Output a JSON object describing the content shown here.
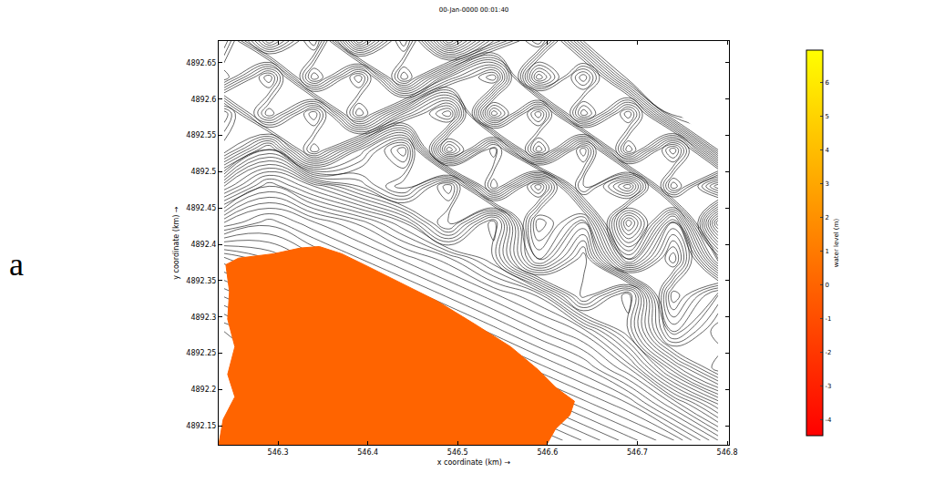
{
  "chart_data": {
    "type": "map_contour",
    "title": "00-Jan-0000 00:01:40",
    "x_label": "x coordinate (km) →",
    "y_label": "y coordinate (km) →",
    "xlim": [
      546.234,
      546.802
    ],
    "ylim": [
      4892.124,
      4892.68
    ],
    "xticks": [
      546.3,
      546.4,
      546.5,
      546.6,
      546.7,
      546.8
    ],
    "yticks": [
      4892.15,
      4892.2,
      4892.25,
      4892.3,
      4892.35,
      4892.4,
      4892.45,
      4892.5,
      4892.55,
      4892.6,
      4892.65
    ],
    "grid": false,
    "water_level": 0,
    "water_area": {
      "x": [
        546.242,
        546.256,
        546.295,
        546.325,
        546.346,
        546.371,
        546.396,
        546.437,
        546.477,
        546.518,
        546.559,
        546.589,
        546.609,
        546.63,
        546.625,
        546.609,
        546.599,
        546.234,
        546.239,
        546.252,
        546.244,
        546.252,
        546.244,
        546.246,
        546.242
      ],
      "y": [
        4892.372,
        4892.381,
        4892.387,
        4892.395,
        4892.397,
        4892.387,
        4892.372,
        4892.347,
        4892.322,
        4892.291,
        4892.259,
        4892.228,
        4892.203,
        4892.184,
        4892.165,
        4892.146,
        4892.124,
        4892.124,
        4892.159,
        4892.19,
        4892.221,
        4892.259,
        4892.297,
        4892.335,
        4892.372
      ]
    },
    "bed_level_contours": {
      "x": [
        546.24,
        546.29,
        546.34,
        546.39,
        546.44,
        546.49,
        546.54,
        546.59,
        546.64,
        546.69,
        546.74,
        546.79
      ],
      "y": [
        4892.13,
        4892.18,
        4892.23,
        4892.28,
        4892.33,
        4892.38,
        4892.43,
        4892.48,
        4892.53,
        4892.58,
        4892.63,
        4892.68
      ],
      "z": [
        [
          -10,
          -10,
          -10,
          -10,
          -10,
          -10,
          -8.8,
          -6.3,
          -3.9,
          -1.5,
          0.9,
          6
        ],
        [
          -10,
          -10,
          -10,
          -10,
          -9.2,
          -6.8,
          -4.4,
          -1.9,
          0.5,
          2.9,
          8,
          14
        ],
        [
          -10,
          -10,
          -9.6,
          -7.2,
          -4.8,
          -2.4,
          0,
          2.5,
          4.9,
          9,
          18,
          25
        ],
        [
          -10,
          -7.7,
          -5.2,
          -2.8,
          -0.4,
          2,
          4.4,
          6.9,
          9.3,
          16,
          28,
          22
        ],
        [
          -5.8,
          -3.4,
          -0.9,
          1.5,
          3.9,
          6.3,
          8.7,
          11.2,
          21,
          14,
          33,
          26
        ],
        [
          -1.4,
          1,
          3.5,
          5.9,
          8.3,
          10.7,
          15,
          27,
          19,
          35,
          24,
          41
        ],
        [
          8,
          5.4,
          7.9,
          10.3,
          14,
          22,
          13,
          31,
          25,
          44,
          30,
          52
        ],
        [
          18,
          12,
          16,
          20,
          25,
          17,
          33,
          21,
          38,
          29,
          47,
          36
        ],
        [
          30,
          22,
          35,
          26,
          19,
          40,
          28,
          45,
          32,
          50,
          38,
          55
        ],
        [
          26,
          38,
          29,
          44,
          34,
          27,
          48,
          36,
          53,
          42,
          58,
          null
        ],
        [
          40,
          31,
          47,
          37,
          52,
          41,
          35,
          55,
          44,
          58,
          null,
          null
        ],
        [
          35,
          48,
          39,
          56,
          45,
          60,
          50,
          43,
          57,
          null,
          null,
          null
        ]
      ],
      "start": -10,
      "end": 60,
      "size": 1
    },
    "colorbar": {
      "title": "water level (m)",
      "range": [
        -4.46,
        6.95
      ],
      "ticks": [
        -4,
        -3,
        -2,
        -1,
        0,
        1,
        2,
        3,
        4,
        5,
        6
      ],
      "colors": [
        "#ff0000",
        "#ffff00"
      ]
    },
    "annotations": [
      "a"
    ]
  }
}
